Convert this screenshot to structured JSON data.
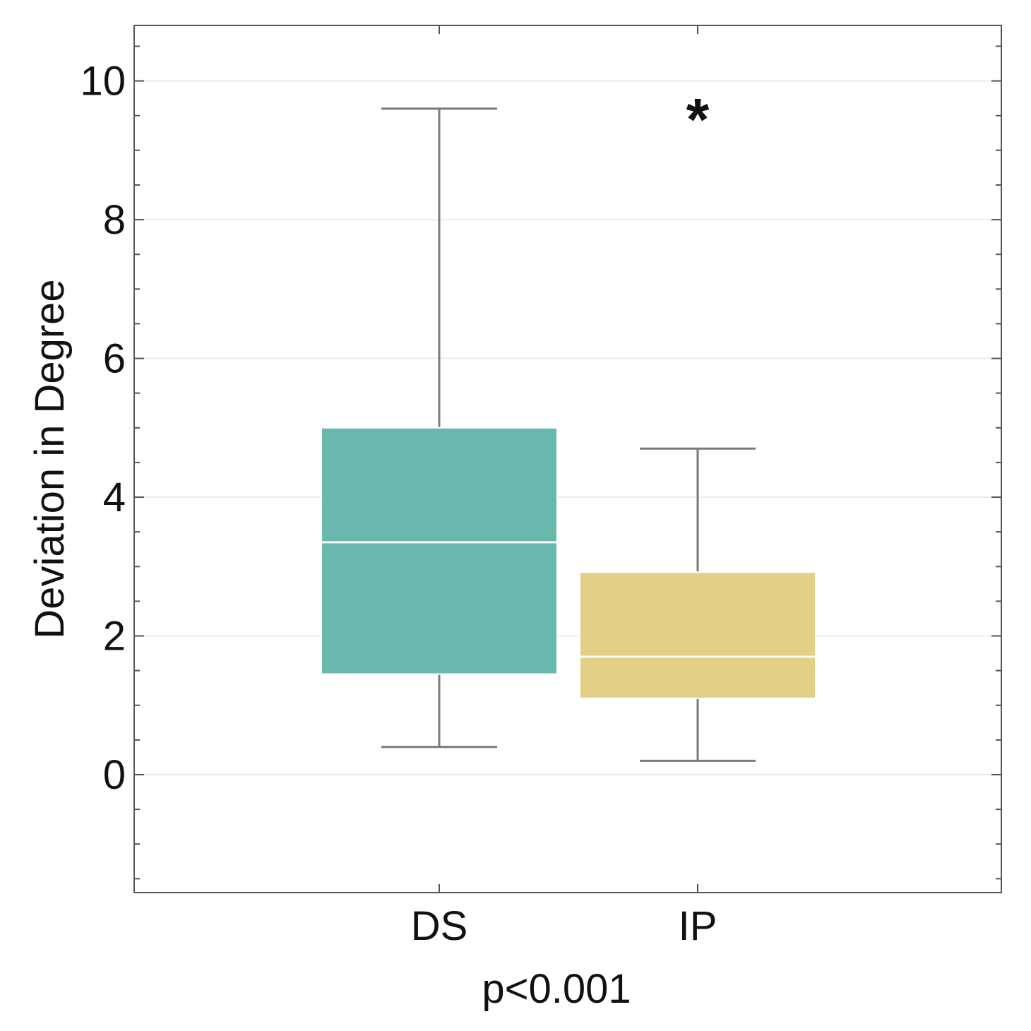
{
  "chart_data": {
    "type": "box",
    "title": "",
    "xlabel": "p<0.001",
    "ylabel": "Deviation in Degree",
    "ylim": [
      -1.7,
      10.8
    ],
    "yticks": [
      0,
      2,
      4,
      6,
      8,
      10
    ],
    "y_minor_step": 0.5,
    "grid": true,
    "categories": [
      "DS",
      "IP"
    ],
    "series": [
      {
        "name": "DS",
        "whisker_low": 0.4,
        "q1": 1.45,
        "median": 3.35,
        "q3": 5.0,
        "whisker_high": 9.6,
        "outliers": [],
        "color": "#69b8ad"
      },
      {
        "name": "IP",
        "whisker_low": 0.2,
        "q1": 1.1,
        "median": 1.7,
        "q3": 2.92,
        "whisker_high": 4.7,
        "outliers": [
          9.6
        ],
        "outlier_marker": "*",
        "color": "#e3d086"
      }
    ],
    "whisker_color": "#7a7a7a",
    "median_color": "#ffffff",
    "frame_color": "#555555",
    "grid_color": "#ececec"
  }
}
